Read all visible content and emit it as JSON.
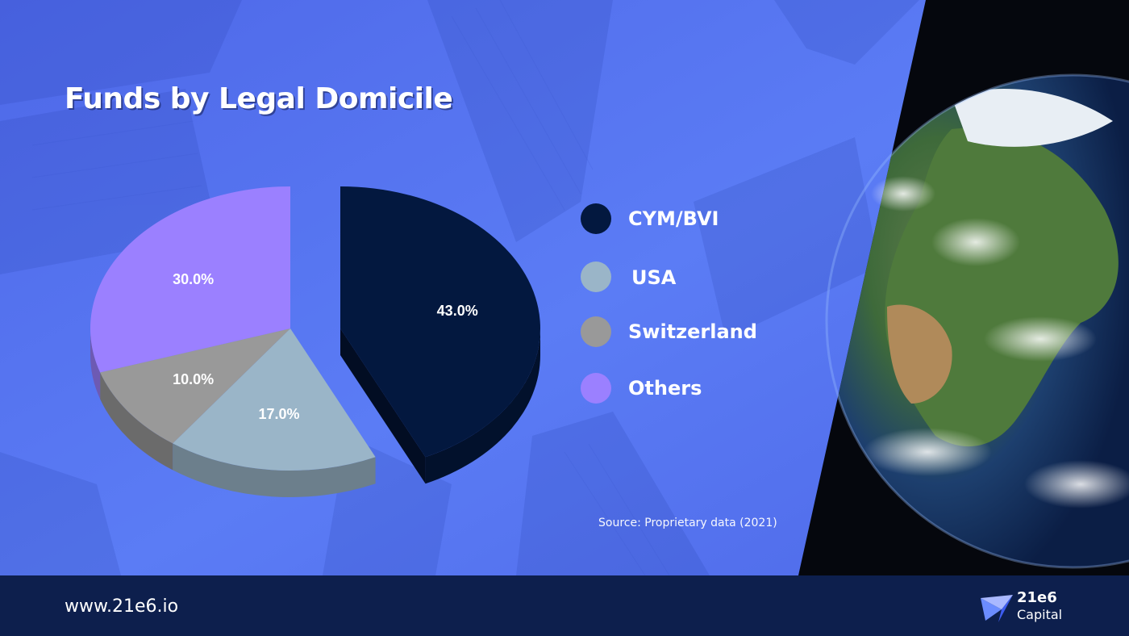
{
  "title": "Funds by Legal Domicile",
  "source": "Source: Proprietary data (2021)",
  "footer": {
    "website": "www.21e6.io",
    "brand_name": "21e6",
    "brand_sub": "Capital"
  },
  "colors": {
    "background": "#5a78f2",
    "footer": "#0d1f4d",
    "space": "#05070d"
  },
  "chart_data": {
    "type": "pie",
    "title": "Funds by Legal Domicile",
    "exploded": "CYM/BVI",
    "style": "3d",
    "legend_position": "right",
    "slices": [
      {
        "label": "CYM/BVI",
        "value": 43.0,
        "display": "43.0%",
        "color": "#03183f"
      },
      {
        "label": "USA",
        "value": 17.0,
        "display": "17.0%",
        "color": "#9ab5c8"
      },
      {
        "label": "Switzerland",
        "value": 10.0,
        "display": "10.0%",
        "color": "#999999"
      },
      {
        "label": "Others",
        "value": 30.0,
        "display": "30.0%",
        "color": "#9b80ff"
      }
    ]
  }
}
